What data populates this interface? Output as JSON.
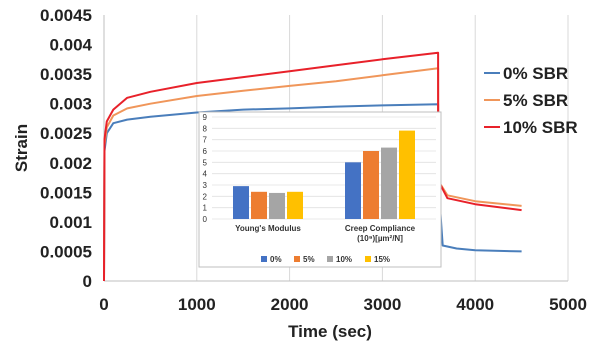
{
  "chart_data": [
    {
      "type": "line",
      "title": "",
      "xlabel": "Time (sec)",
      "ylabel": "Strain",
      "xlim": [
        0,
        5000
      ],
      "ylim": [
        0,
        0.0045
      ],
      "xticks": [
        "0",
        "1000",
        "2000",
        "3000",
        "4000",
        "5000"
      ],
      "yticks": [
        "0",
        "0.0005",
        "0.001",
        "0.0015",
        "0.002",
        "0.0025",
        "0.003",
        "0.0035",
        "0.004",
        "0.0045"
      ],
      "grid": "vertical",
      "legend_position": "right",
      "series": [
        {
          "name": "0% SBR",
          "color": "#4a7ebb",
          "points": [
            [
              0,
              0
            ],
            [
              5,
              0.0022
            ],
            [
              30,
              0.0025
            ],
            [
              100,
              0.00267
            ],
            [
              250,
              0.00273
            ],
            [
              500,
              0.00278
            ],
            [
              1000,
              0.00285
            ],
            [
              1500,
              0.0029
            ],
            [
              2000,
              0.00292
            ],
            [
              2500,
              0.00295
            ],
            [
              3000,
              0.00297
            ],
            [
              3600,
              0.00299
            ],
            [
              3601,
              0.0017
            ],
            [
              3650,
              0.0006
            ],
            [
              3800,
              0.00055
            ],
            [
              4000,
              0.00052
            ],
            [
              4500,
              0.0005
            ]
          ]
        },
        {
          "name": "5% SBR",
          "color": "#f0965a",
          "points": [
            [
              0,
              0
            ],
            [
              5,
              0.0023
            ],
            [
              30,
              0.0026
            ],
            [
              100,
              0.0028
            ],
            [
              250,
              0.00292
            ],
            [
              500,
              0.003
            ],
            [
              1000,
              0.00313
            ],
            [
              1500,
              0.00322
            ],
            [
              2000,
              0.0033
            ],
            [
              2500,
              0.00338
            ],
            [
              3000,
              0.00348
            ],
            [
              3600,
              0.0036
            ],
            [
              3601,
              0.0017
            ],
            [
              3700,
              0.00145
            ],
            [
              4000,
              0.00135
            ],
            [
              4500,
              0.00127
            ]
          ]
        },
        {
          "name": "10% SBR",
          "color": "#e8212a",
          "points": [
            [
              0,
              0
            ],
            [
              5,
              0.0024
            ],
            [
              30,
              0.0027
            ],
            [
              100,
              0.0029
            ],
            [
              250,
              0.0031
            ],
            [
              500,
              0.0032
            ],
            [
              1000,
              0.00335
            ],
            [
              1500,
              0.00345
            ],
            [
              2000,
              0.00355
            ],
            [
              2500,
              0.00365
            ],
            [
              3000,
              0.00375
            ],
            [
              3600,
              0.00386
            ],
            [
              3601,
              0.0017
            ],
            [
              3700,
              0.0014
            ],
            [
              4000,
              0.0013
            ],
            [
              4500,
              0.0012
            ]
          ]
        }
      ]
    },
    {
      "type": "bar",
      "title": "",
      "categories": [
        "Young's Modulus",
        "Creep Compliance\n(10⁹)[µm²/N]"
      ],
      "ylim": [
        0,
        9
      ],
      "yticks": [
        "0",
        "1",
        "2",
        "3",
        "4",
        "5",
        "6",
        "7",
        "8",
        "9"
      ],
      "grid": "horizontal",
      "legend_position": "bottom",
      "series": [
        {
          "name": "0%",
          "color": "#4472c4",
          "values": [
            2.9,
            5.0
          ]
        },
        {
          "name": "5%",
          "color": "#ed7d31",
          "values": [
            2.4,
            6.0
          ]
        },
        {
          "name": "10%",
          "color": "#a5a5a5",
          "values": [
            2.3,
            6.3
          ]
        },
        {
          "name": "15%",
          "color": "#ffc000",
          "values": [
            2.4,
            7.8
          ]
        }
      ]
    }
  ]
}
